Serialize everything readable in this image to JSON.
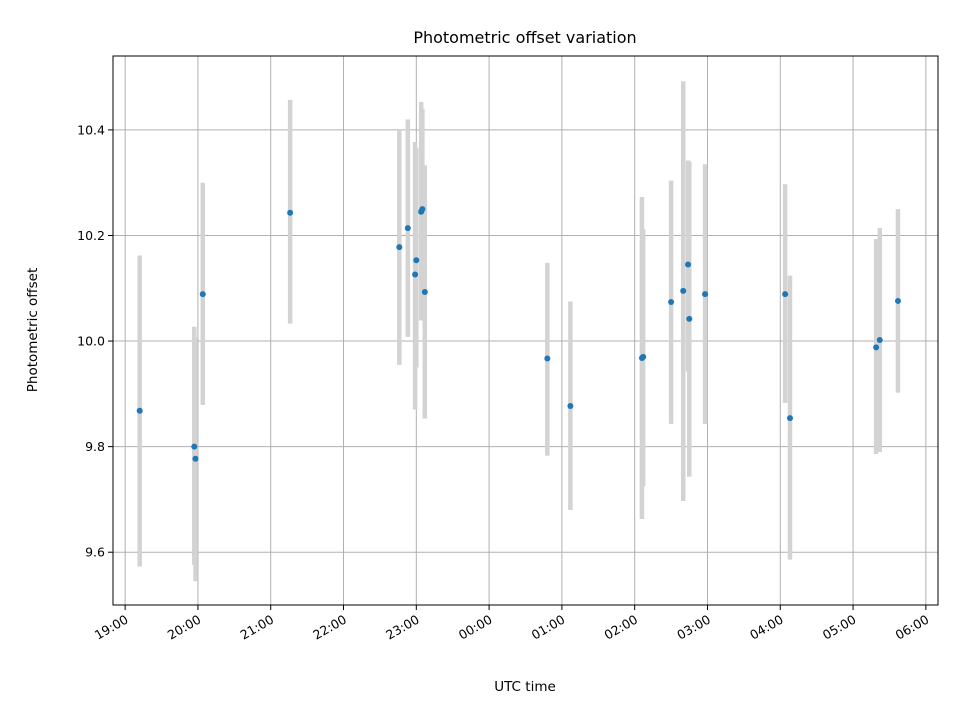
{
  "chart_data": {
    "type": "scatter",
    "title": "Photometric offset variation",
    "xlabel": "UTC time",
    "ylabel": "Photometric offset",
    "xlim": [
      "18:50",
      "30:10"
    ],
    "ylim": [
      9.5,
      10.54
    ],
    "grid": true,
    "x_ticks": [
      {
        "value": "19:00",
        "label": "19:00"
      },
      {
        "value": "20:00",
        "label": "20:00"
      },
      {
        "value": "21:00",
        "label": "21:00"
      },
      {
        "value": "22:00",
        "label": "22:00"
      },
      {
        "value": "23:00",
        "label": "23:00"
      },
      {
        "value": "24:00",
        "label": "00:00"
      },
      {
        "value": "25:00",
        "label": "01:00"
      },
      {
        "value": "26:00",
        "label": "02:00"
      },
      {
        "value": "27:00",
        "label": "03:00"
      },
      {
        "value": "28:00",
        "label": "04:00"
      },
      {
        "value": "29:00",
        "label": "05:00"
      },
      {
        "value": "30:00",
        "label": "06:00"
      }
    ],
    "y_ticks": [
      9.6,
      9.8,
      10.0,
      10.2,
      10.4
    ],
    "marker_color": "#1f77b4",
    "errorbar_color": "#d3d3d3",
    "points": [
      {
        "t": "19:12",
        "y": 9.868,
        "lo": 9.573,
        "hi": 10.162
      },
      {
        "t": "19:57",
        "y": 9.8,
        "lo": 9.576,
        "hi": 10.027
      },
      {
        "t": "19:58",
        "y": 9.777,
        "lo": 9.545,
        "hi": 10.007
      },
      {
        "t": "20:04",
        "y": 10.089,
        "lo": 9.879,
        "hi": 10.3
      },
      {
        "t": "21:16",
        "y": 10.243,
        "lo": 10.033,
        "hi": 10.457
      },
      {
        "t": "22:46",
        "y": 10.178,
        "lo": 9.955,
        "hi": 10.4
      },
      {
        "t": "22:53",
        "y": 10.214,
        "lo": 10.008,
        "hi": 10.42
      },
      {
        "t": "22:59",
        "y": 10.126,
        "lo": 9.87,
        "hi": 10.377
      },
      {
        "t": "23:00",
        "y": 10.153,
        "lo": 9.95,
        "hi": 10.366
      },
      {
        "t": "23:04",
        "y": 10.245,
        "lo": 10.039,
        "hi": 10.453
      },
      {
        "t": "23:05",
        "y": 10.25,
        "lo": 10.075,
        "hi": 10.44
      },
      {
        "t": "23:07",
        "y": 10.093,
        "lo": 9.853,
        "hi": 10.333
      },
      {
        "t": "24:48",
        "y": 9.967,
        "lo": 9.783,
        "hi": 10.148
      },
      {
        "t": "25:07",
        "y": 9.877,
        "lo": 9.68,
        "hi": 10.075
      },
      {
        "t": "26:06",
        "y": 9.968,
        "lo": 9.663,
        "hi": 10.273
      },
      {
        "t": "26:07",
        "y": 9.97,
        "lo": 9.725,
        "hi": 10.212
      },
      {
        "t": "26:30",
        "y": 10.074,
        "lo": 9.843,
        "hi": 10.304
      },
      {
        "t": "26:40",
        "y": 10.095,
        "lo": 9.697,
        "hi": 10.492
      },
      {
        "t": "26:44",
        "y": 10.145,
        "lo": 9.942,
        "hi": 10.342
      },
      {
        "t": "26:45",
        "y": 10.042,
        "lo": 9.743,
        "hi": 10.34
      },
      {
        "t": "26:58",
        "y": 10.089,
        "lo": 9.843,
        "hi": 10.335
      },
      {
        "t": "28:04",
        "y": 10.089,
        "lo": 9.883,
        "hi": 10.297
      },
      {
        "t": "28:08",
        "y": 9.854,
        "lo": 9.586,
        "hi": 10.124
      },
      {
        "t": "29:19",
        "y": 9.988,
        "lo": 9.786,
        "hi": 10.193
      },
      {
        "t": "29:22",
        "y": 10.002,
        "lo": 9.79,
        "hi": 10.214
      },
      {
        "t": "29:37",
        "y": 10.076,
        "lo": 9.902,
        "hi": 10.25
      }
    ]
  }
}
